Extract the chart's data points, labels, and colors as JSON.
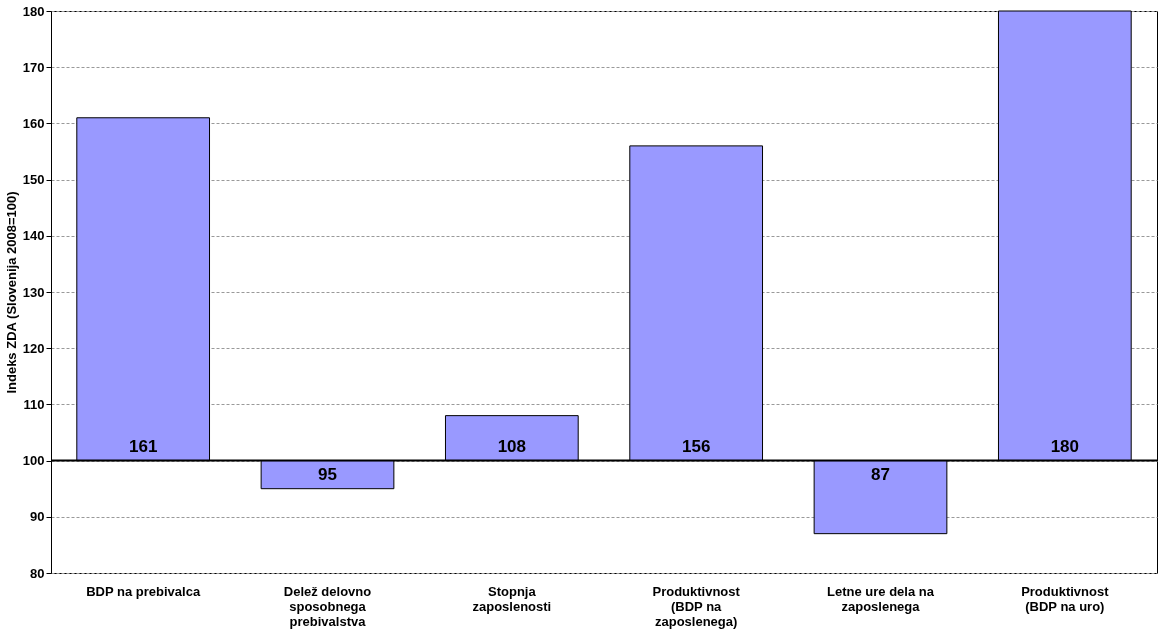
{
  "chart_data": {
    "type": "bar",
    "ylabel": "Indeks ZDA (Slovenija 2008=100)",
    "categories": [
      "BDP na prebivalca",
      "Delež delovno\nsposobnega\nprebivalstva",
      "Stopnja\nzaposlenosti",
      "Produktivnost\n(BDP na\nzaposlenega)",
      "Letne ure dela na\nzaposlenega",
      "Produktivnost\n(BDP na uro)"
    ],
    "base": [
      100,
      100,
      100,
      100,
      100,
      100
    ],
    "values": [
      61,
      -5,
      8,
      56,
      -13,
      80
    ],
    "value_labels": [
      "161",
      "95",
      "108",
      "156",
      "87",
      "180"
    ],
    "color": "#9999ff",
    "ylim": [
      80,
      180
    ],
    "yticks": [
      80,
      90,
      100,
      110,
      120,
      130,
      140,
      150,
      160,
      170,
      180
    ],
    "grid": "y",
    "ref_lines": [
      {
        "axis": "y",
        "value": 100,
        "color": "#000000"
      }
    ]
  }
}
